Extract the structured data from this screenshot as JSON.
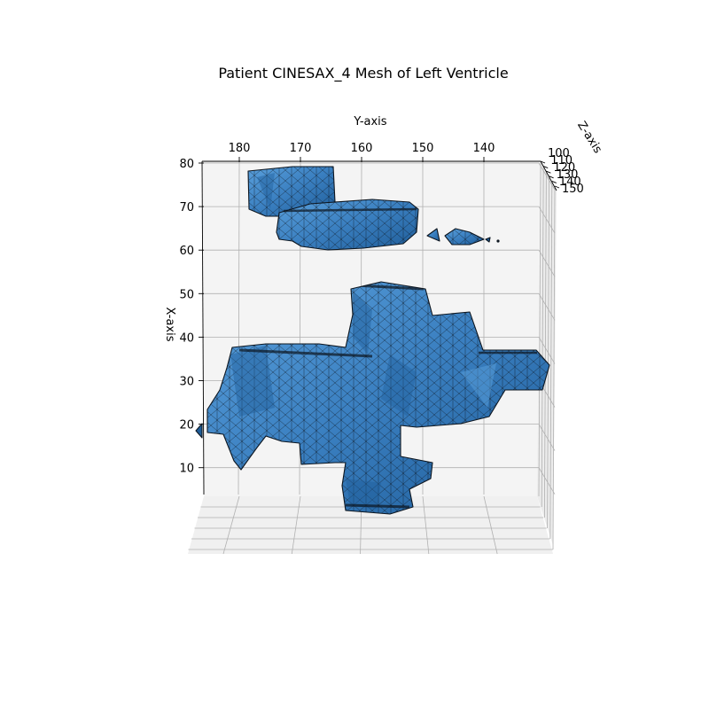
{
  "chart_data": {
    "type": "3d-mesh",
    "title": "Patient CINESAX_4 Mesh of Left Ventricle",
    "xlabel": "X-axis",
    "ylabel": "Y-axis",
    "zlabel": "Z-axis",
    "x_ticks": [
      "10",
      "20",
      "30",
      "40",
      "50",
      "60",
      "70",
      "80"
    ],
    "y_ticks": [
      "180",
      "170",
      "160",
      "150",
      "140"
    ],
    "z_ticks": [
      "100",
      "110",
      "120",
      "130",
      "140",
      "150"
    ],
    "xlim": [
      3,
      80
    ],
    "ylim": [
      186,
      128
    ],
    "zlim": [
      100,
      150
    ],
    "grid": true,
    "colors": {
      "face": "#3a7fc0",
      "face_light": "#5aa0dc",
      "face_dark": "#1f5d99",
      "edge": "#0d1620",
      "pane": "#f2f2f2"
    }
  }
}
